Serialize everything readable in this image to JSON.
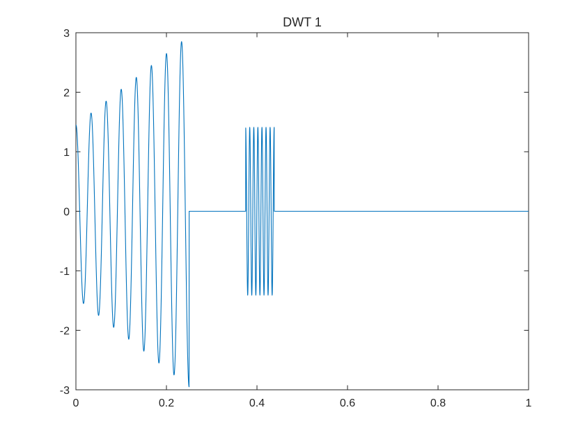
{
  "chart_data": {
    "type": "line",
    "title": "DWT 1",
    "xlabel": "",
    "ylabel": "",
    "xlim": [
      0,
      1
    ],
    "ylim": [
      -3,
      3
    ],
    "xticks": [
      "0",
      "0.2",
      "0.4",
      "0.6",
      "0.8",
      "1"
    ],
    "yticks": [
      "-3",
      "-2",
      "-1",
      "0",
      "1",
      "2",
      "3"
    ],
    "grid": false,
    "legend": "none",
    "line_color": "#0072BD",
    "series": [
      {
        "segments": [
          {
            "x_start": 0,
            "x_end": 0.25,
            "shape": "chirp",
            "cycles": 8,
            "amplitude_start": 1.45,
            "amplitude_end": 2.95
          },
          {
            "x_start": 0.25,
            "x_end": 0.375,
            "value": 0
          },
          {
            "x_start": 0.375,
            "x_end": 0.438,
            "shape": "oscillation",
            "cycles": 7,
            "amplitude": 1.41
          },
          {
            "x_start": 0.438,
            "x_end": 1,
            "value": 0
          }
        ],
        "peaks": [
          {
            "x": 0.03,
            "y": 1.55
          },
          {
            "x": 0.063,
            "y": 1.7
          },
          {
            "x": 0.094,
            "y": 1.87
          },
          {
            "x": 0.125,
            "y": 2.05
          },
          {
            "x": 0.157,
            "y": 2.26
          },
          {
            "x": 0.188,
            "y": 2.47
          },
          {
            "x": 0.219,
            "y": 2.73
          },
          {
            "x": 0.25,
            "y": 3.0
          }
        ],
        "troughs": [
          {
            "x": 0.015,
            "y": -1.48
          },
          {
            "x": 0.047,
            "y": -1.63
          },
          {
            "x": 0.078,
            "y": -1.79
          },
          {
            "x": 0.109,
            "y": -1.96
          },
          {
            "x": 0.141,
            "y": -2.16
          },
          {
            "x": 0.172,
            "y": -2.37
          },
          {
            "x": 0.203,
            "y": -2.6
          },
          {
            "x": 0.235,
            "y": -2.85
          }
        ]
      }
    ]
  }
}
